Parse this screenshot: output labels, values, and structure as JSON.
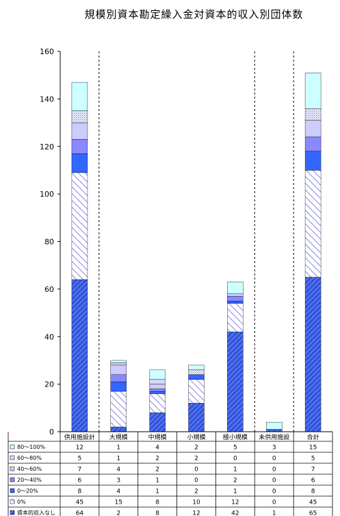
{
  "chart_data": {
    "type": "bar",
    "stacked": true,
    "title": "規模別資本勘定繰入金対資本的収入別団体数",
    "categories": [
      "供用施設計",
      "大規模",
      "中規模",
      "小規模",
      "極小規模",
      "未供用施設",
      "合計"
    ],
    "ylim": [
      0,
      160
    ],
    "yticks": [
      0,
      20,
      40,
      60,
      80,
      100,
      120,
      140,
      160
    ],
    "grid": false,
    "separators_after_category": [
      0,
      4,
      5
    ],
    "series": [
      {
        "name": "資本的収入なし",
        "values": [
          64,
          2,
          8,
          12,
          42,
          1,
          65
        ],
        "color": "#3355dd",
        "pattern": "dense-hatch"
      },
      {
        "name": "0%",
        "values": [
          45,
          15,
          8,
          10,
          12,
          0,
          45
        ],
        "color": "#9999ee",
        "pattern": "sparse-hatch"
      },
      {
        "name": "0～20%",
        "values": [
          8,
          4,
          1,
          2,
          1,
          0,
          8
        ],
        "color": "#3366ff",
        "pattern": "solid"
      },
      {
        "name": "20～40%",
        "values": [
          6,
          3,
          1,
          0,
          2,
          0,
          6
        ],
        "color": "#8888ff",
        "pattern": "solid"
      },
      {
        "name": "40～60%",
        "values": [
          7,
          4,
          2,
          0,
          1,
          0,
          7
        ],
        "color": "#ccccff",
        "pattern": "solid"
      },
      {
        "name": "60～80%",
        "values": [
          5,
          1,
          2,
          2,
          0,
          0,
          5
        ],
        "color": "#ddddff",
        "pattern": "dots"
      },
      {
        "name": "80～100%",
        "values": [
          12,
          1,
          4,
          2,
          5,
          3,
          15
        ],
        "color": "#ccffff",
        "pattern": "solid"
      }
    ]
  }
}
